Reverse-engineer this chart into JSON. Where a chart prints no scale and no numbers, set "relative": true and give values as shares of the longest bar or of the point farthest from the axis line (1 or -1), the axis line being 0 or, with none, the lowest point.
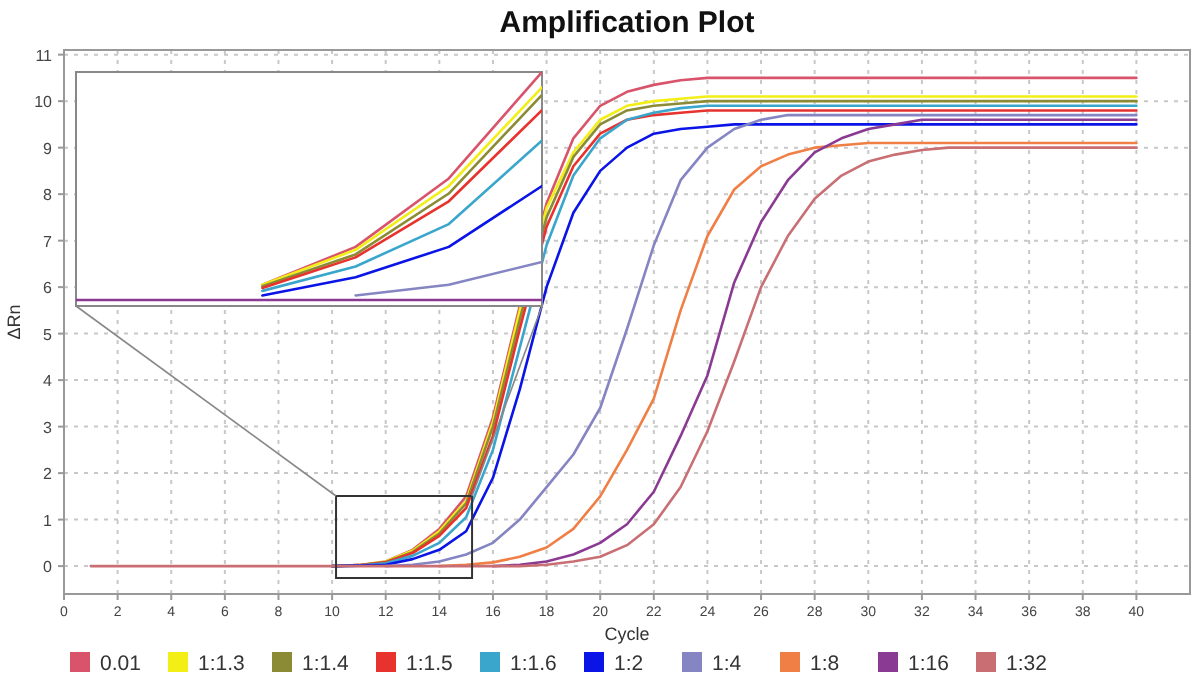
{
  "chart_data": [
    {
      "type": "line",
      "title": "Amplification Plot",
      "xlabel": "Cycle",
      "ylabel": "ΔRn",
      "grid": true,
      "legend": "bottom",
      "line_style": "solid",
      "marker": "none",
      "x": [
        1,
        2,
        3,
        4,
        5,
        6,
        7,
        8,
        9,
        10,
        11,
        12,
        13,
        14,
        15,
        16,
        17,
        18,
        19,
        20,
        21,
        22,
        23,
        24,
        25,
        26,
        27,
        28,
        29,
        30,
        31,
        32,
        33,
        34,
        35,
        36,
        37,
        38,
        39,
        40
      ],
      "xlim": [
        0,
        42
      ],
      "xticks": [
        0,
        2,
        4,
        6,
        8,
        10,
        12,
        14,
        16,
        18,
        20,
        22,
        24,
        26,
        28,
        30,
        32,
        34,
        36,
        38,
        40
      ],
      "ylim": [
        -0.6,
        11.1
      ],
      "yticks": [
        0,
        1,
        2,
        3,
        4,
        5,
        6,
        7,
        8,
        9,
        10,
        11
      ],
      "series": [
        {
          "name": "0.01",
          "color": "#d9546b",
          "values": [
            null,
            null,
            null,
            null,
            null,
            null,
            null,
            null,
            null,
            0,
            0.02,
            0.1,
            0.35,
            0.8,
            1.5,
            3.2,
            5.6,
            7.8,
            9.2,
            9.9,
            10.2,
            10.35,
            10.45,
            10.5,
            10.5,
            10.5,
            10.5,
            10.5,
            10.5,
            10.5,
            10.5,
            10.5,
            10.5,
            10.5,
            10.5,
            10.5,
            10.5,
            10.5,
            10.5,
            10.5
          ]
        },
        {
          "name": "1:1.3",
          "color": "#f2ee16",
          "values": [
            null,
            null,
            null,
            null,
            null,
            null,
            null,
            null,
            null,
            0,
            0.02,
            0.1,
            0.33,
            0.75,
            1.4,
            3.1,
            5.5,
            7.7,
            8.9,
            9.6,
            9.9,
            10,
            10.05,
            10.1,
            10.1,
            10.1,
            10.1,
            10.1,
            10.1,
            10.1,
            10.1,
            10.1,
            10.1,
            10.1,
            10.1,
            10.1,
            10.1,
            10.1,
            10.1,
            10.1
          ]
        },
        {
          "name": "1:1.4",
          "color": "#8b8b35",
          "values": [
            null,
            null,
            null,
            null,
            null,
            null,
            null,
            null,
            null,
            0,
            0.02,
            0.09,
            0.3,
            0.7,
            1.35,
            3,
            5.3,
            7.5,
            8.8,
            9.5,
            9.8,
            9.9,
            9.95,
            10,
            10,
            10,
            10,
            10,
            10,
            10,
            10,
            10,
            10,
            10,
            10,
            10,
            10,
            10,
            10,
            10
          ]
        },
        {
          "name": "1:1.5",
          "color": "#e8322e",
          "values": [
            null,
            null,
            null,
            null,
            null,
            null,
            null,
            null,
            null,
            0,
            0.02,
            0.08,
            0.28,
            0.65,
            1.25,
            2.8,
            5.1,
            7.3,
            8.6,
            9.3,
            9.6,
            9.7,
            9.75,
            9.8,
            9.8,
            9.8,
            9.8,
            9.8,
            9.8,
            9.8,
            9.8,
            9.8,
            9.8,
            9.8,
            9.8,
            9.8,
            9.8,
            9.8,
            9.8,
            9.8
          ]
        },
        {
          "name": "1:1.6",
          "color": "#3aa6cc",
          "values": [
            null,
            null,
            null,
            null,
            null,
            null,
            null,
            null,
            null,
            0,
            0.01,
            0.06,
            0.22,
            0.5,
            1.05,
            2.5,
            4.7,
            6.9,
            8.4,
            9.2,
            9.6,
            9.75,
            9.85,
            9.9,
            9.9,
            9.9,
            9.9,
            9.9,
            9.9,
            9.9,
            9.9,
            9.9,
            9.9,
            9.9,
            9.9,
            9.9,
            9.9,
            9.9,
            9.9,
            9.9
          ]
        },
        {
          "name": "1:2",
          "color": "#0a14e6",
          "values": [
            null,
            null,
            null,
            null,
            null,
            null,
            null,
            null,
            null,
            0,
            0.01,
            0.03,
            0.15,
            0.35,
            0.75,
            1.9,
            3.8,
            6,
            7.6,
            8.5,
            9,
            9.3,
            9.4,
            9.45,
            9.5,
            9.5,
            9.5,
            9.5,
            9.5,
            9.5,
            9.5,
            9.5,
            9.5,
            9.5,
            9.5,
            9.5,
            9.5,
            9.5,
            9.5,
            9.5
          ]
        },
        {
          "name": "1:4",
          "color": "#8585c4",
          "values": [
            null,
            null,
            null,
            null,
            null,
            null,
            null,
            null,
            null,
            null,
            null,
            0,
            0.03,
            0.1,
            0.25,
            0.5,
            1,
            1.7,
            2.4,
            3.4,
            5.1,
            6.9,
            8.3,
            9,
            9.4,
            9.6,
            9.7,
            9.7,
            9.7,
            9.7,
            9.7,
            9.7,
            9.7,
            9.7,
            9.7,
            9.7,
            9.7,
            9.7,
            9.7,
            9.7
          ]
        },
        {
          "name": "1:8",
          "color": "#ef7f45",
          "values": [
            null,
            null,
            null,
            null,
            null,
            null,
            null,
            null,
            null,
            null,
            null,
            null,
            null,
            0,
            0.03,
            0.08,
            0.2,
            0.4,
            0.8,
            1.5,
            2.5,
            3.6,
            5.5,
            7.1,
            8.1,
            8.6,
            8.85,
            9,
            9.05,
            9.1,
            9.1,
            9.1,
            9.1,
            9.1,
            9.1,
            9.1,
            9.1,
            9.1,
            9.1,
            9.1
          ]
        },
        {
          "name": "1:16",
          "color": "#8a3a93",
          "values": [
            null,
            null,
            null,
            null,
            null,
            null,
            null,
            null,
            null,
            null,
            null,
            null,
            null,
            null,
            null,
            0,
            0.03,
            0.1,
            0.25,
            0.5,
            0.9,
            1.6,
            2.8,
            4.1,
            6.1,
            7.4,
            8.3,
            8.9,
            9.2,
            9.4,
            9.5,
            9.6,
            9.6,
            9.6,
            9.6,
            9.6,
            9.6,
            9.6,
            9.6,
            9.6
          ]
        },
        {
          "name": "1:32",
          "color": "#c96f74",
          "values": [
            0,
            0,
            0,
            0,
            0,
            0,
            0,
            0,
            0,
            0,
            0,
            0,
            0,
            0,
            0,
            0,
            0,
            0.03,
            0.1,
            0.2,
            0.45,
            0.9,
            1.7,
            2.9,
            4.4,
            6,
            7.1,
            7.9,
            8.4,
            8.7,
            8.85,
            8.95,
            9,
            9,
            9,
            9,
            9,
            9,
            9,
            9
          ]
        }
      ]
    },
    {
      "type": "line",
      "relative": true,
      "line_style": "solid",
      "marker": "none",
      "categories": [
        null,
        null,
        null,
        null,
        null,
        null
      ],
      "series": [
        {
          "color": "#d9546b",
          "values": [
            null,
            null,
            0.067,
            0.233,
            0.533,
            1
          ]
        },
        {
          "color": "#f2ee16",
          "values": [
            null,
            null,
            0.067,
            0.22,
            0.5,
            0.933
          ]
        },
        {
          "color": "#8b8b35",
          "values": [
            null,
            null,
            0.06,
            0.2,
            0.467,
            0.9
          ]
        },
        {
          "color": "#e8322e",
          "values": [
            null,
            null,
            0.053,
            0.187,
            0.433,
            0.833
          ]
        },
        {
          "color": "#3aa6cc",
          "values": [
            null,
            null,
            0.04,
            0.147,
            0.333,
            0.7
          ]
        },
        {
          "color": "#0a14e6",
          "values": [
            null,
            null,
            0.02,
            0.1,
            0.233,
            0.5
          ]
        },
        {
          "color": "#8585c4",
          "values": [
            null,
            null,
            null,
            0.02,
            0.067,
            0.167
          ]
        },
        {
          "color": "#8a3a93",
          "values": [
            0,
            0,
            0,
            0,
            0,
            0
          ]
        }
      ]
    }
  ]
}
